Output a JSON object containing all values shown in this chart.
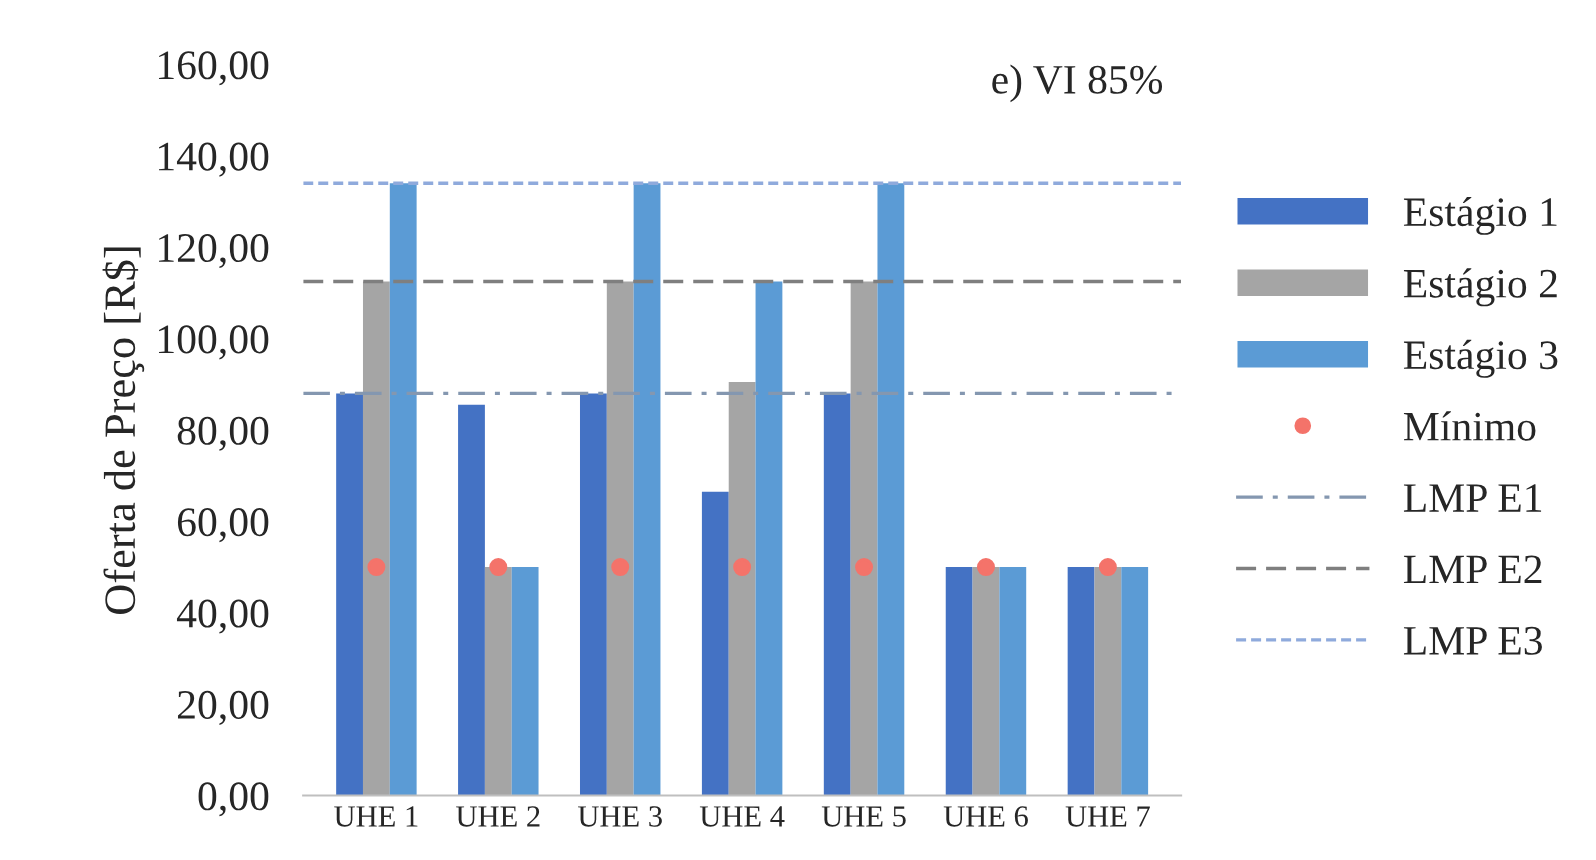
{
  "chart_data": {
    "type": "bar",
    "title": "e) VI 85%",
    "ylabel": "Oferta de Preço [R$]",
    "categories": [
      "UHE 1",
      "UHE 2",
      "UHE 3",
      "UHE 4",
      "UHE 5",
      "UHE 6",
      "UHE 7"
    ],
    "series": [
      {
        "name": "Estágio 1",
        "color": "#4472c4",
        "values": [
          88,
          85.5,
          88,
          66.5,
          88,
          50,
          50
        ]
      },
      {
        "name": "Estágio 2",
        "color": "#a5a5a5",
        "values": [
          112.5,
          50,
          112.5,
          90.5,
          112.5,
          50,
          50
        ]
      },
      {
        "name": "Estágio 3",
        "color": "#5b9bd5",
        "values": [
          134,
          50,
          134,
          112.5,
          134,
          50,
          50
        ]
      },
      {
        "name": "Mínimo",
        "type": "scatter",
        "color": "#f4736a",
        "marker": "circle",
        "x": [
          "UHE 1",
          "UHE 2",
          "UHE 3",
          "UHE 4",
          "UHE 5",
          "UHE 6",
          "UHE 7"
        ],
        "values": [
          50,
          50,
          50,
          50,
          50,
          50,
          50
        ]
      }
    ],
    "ref_lines": [
      {
        "axis": "y",
        "value": 88,
        "label": "LMP E1",
        "color": "#8497b0",
        "line_style": "dashdot"
      },
      {
        "axis": "y",
        "value": 112.5,
        "label": "LMP E2",
        "color": "#7f7f7f",
        "line_style": "dashed"
      },
      {
        "axis": "y",
        "value": 134,
        "label": "LMP E3",
        "color": "#8faadc",
        "line_style": "dotted"
      }
    ],
    "ylim": [
      0,
      160
    ],
    "yticks": [
      {
        "value": 0,
        "label": "0,00"
      },
      {
        "value": 20,
        "label": "20,00"
      },
      {
        "value": 40,
        "label": "40,00"
      },
      {
        "value": 60,
        "label": "60,00"
      },
      {
        "value": 80,
        "label": "80,00"
      },
      {
        "value": 100,
        "label": "100,00"
      },
      {
        "value": 120,
        "label": "120,00"
      },
      {
        "value": 140,
        "label": "140,00"
      },
      {
        "value": 160,
        "label": "160,00"
      }
    ],
    "grid": false,
    "legend": "right"
  }
}
